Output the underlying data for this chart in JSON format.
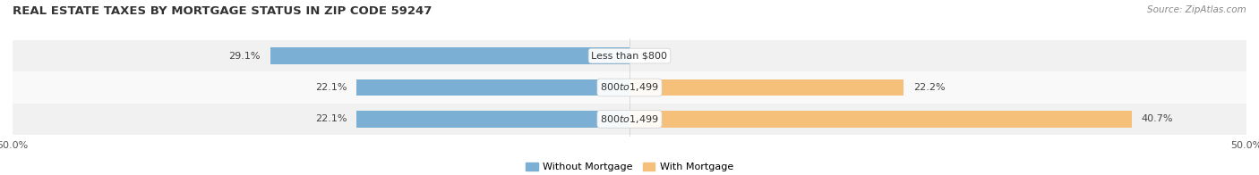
{
  "title": "REAL ESTATE TAXES BY MORTGAGE STATUS IN ZIP CODE 59247",
  "source": "Source: ZipAtlas.com",
  "rows": [
    {
      "label": "Less than $800",
      "without_mortgage": 29.1,
      "with_mortgage": 0.0
    },
    {
      "label": "$800 to $1,499",
      "without_mortgage": 22.1,
      "with_mortgage": 22.2
    },
    {
      "label": "$800 to $1,499",
      "without_mortgage": 22.1,
      "with_mortgage": 40.7
    }
  ],
  "xlim": [
    -50,
    50
  ],
  "color_without": "#7bafd4",
  "color_with": "#f5c07a",
  "bar_height": 0.52,
  "title_fontsize": 9.5,
  "label_fontsize": 8.0,
  "tick_fontsize": 8.0,
  "legend_fontsize": 8.0,
  "source_fontsize": 7.5,
  "background_row_even": "#e8e8e8",
  "background_row_odd": "#f5f5f5",
  "bar_label_color": "#444444"
}
